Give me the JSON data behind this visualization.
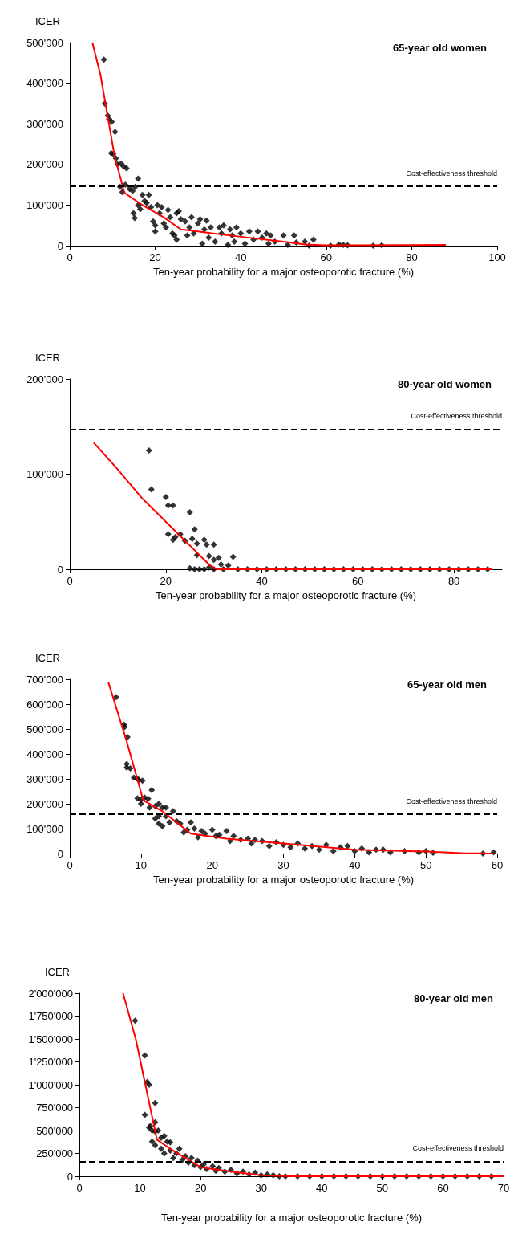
{
  "chart_data": [
    {
      "type": "scatter",
      "title": "65-year old women",
      "xlabel": "Ten-year probability for a major osteoporotic fracture (%)",
      "ylabel": "ICER",
      "marker": "diamond",
      "grid": false,
      "xlim": [
        0,
        100
      ],
      "xticks": [
        0,
        20,
        40,
        60,
        80,
        100
      ],
      "ylim": [
        0,
        500000
      ],
      "yticks": [
        {
          "value": 0,
          "label": "0"
        },
        {
          "value": 100000,
          "label": "100'000"
        },
        {
          "value": 200000,
          "label": "200'000"
        },
        {
          "value": 300000,
          "label": "300'000"
        },
        {
          "value": 400000,
          "label": "400'000"
        },
        {
          "value": 500000,
          "label": "500'000"
        }
      ],
      "ref_lines": [
        {
          "axis": "y",
          "value": 146000,
          "label": "Cost-effectiveness threshold",
          "color": "#000000",
          "line_style": "dashed"
        }
      ],
      "series": [
        {
          "color": "#000000",
          "x": [
            8,
            8.2,
            8.9,
            9.2,
            9.8,
            10.6,
            9.7,
            10.2,
            10.8,
            11.2,
            12,
            12.6,
            13.3,
            11.8,
            12.3,
            13,
            14,
            14.7,
            15.3,
            16,
            14.9,
            15.2,
            16,
            16.5,
            17,
            17.5,
            18,
            18.5,
            19,
            19.5,
            20,
            20,
            20.5,
            21,
            21.5,
            22,
            22.5,
            23,
            23.5,
            24,
            24.5,
            25,
            25,
            25.5,
            26,
            27,
            27.5,
            28,
            28.5,
            29,
            30,
            30.5,
            31,
            31.5,
            32,
            32.5,
            33,
            34,
            35,
            35.5,
            36,
            37,
            37.5,
            38,
            38.5,
            39,
            40,
            41,
            42,
            43,
            44,
            45,
            46,
            46.5,
            47,
            48,
            50,
            51,
            52.5,
            53,
            55,
            56,
            57,
            61,
            63,
            64,
            65,
            71,
            73
          ],
          "values": [
            458000,
            350000,
            320000,
            312000,
            305000,
            280000,
            228000,
            226000,
            215000,
            200000,
            202000,
            195000,
            190000,
            145000,
            132000,
            150000,
            140000,
            135000,
            145000,
            165000,
            80000,
            68000,
            100000,
            90000,
            125000,
            110000,
            105000,
            125000,
            95000,
            60000,
            50000,
            35000,
            100000,
            80000,
            95000,
            55000,
            45000,
            88000,
            70000,
            30000,
            25000,
            15000,
            80000,
            85000,
            65000,
            60000,
            25000,
            45000,
            70000,
            30000,
            55000,
            65000,
            5000,
            40000,
            62000,
            20000,
            45000,
            10000,
            45000,
            30000,
            50000,
            2000,
            40000,
            25000,
            10000,
            45000,
            30000,
            5000,
            35000,
            15000,
            35000,
            20000,
            30000,
            5000,
            25000,
            10000,
            25000,
            2000,
            25000,
            8000,
            10000,
            0,
            15000,
            0,
            3000,
            2000,
            1000,
            0,
            1000
          ]
        },
        {
          "type": "line",
          "color": "#ff0000",
          "marker": "none",
          "x": [
            5.3,
            7.2,
            10.5,
            12.8,
            17,
            22,
            26,
            30,
            40,
            50,
            55,
            60,
            88
          ],
          "values": [
            500000,
            420000,
            220000,
            130000,
            100000,
            70000,
            40000,
            35000,
            22000,
            10000,
            3000,
            1000,
            2000
          ]
        }
      ]
    },
    {
      "type": "scatter",
      "title": "80-year old women",
      "xlabel": "Ten-year probability for a major osteoporotic fracture (%)",
      "ylabel": "ICER",
      "marker": "diamond",
      "grid": false,
      "xlim": [
        0,
        90
      ],
      "xticks": [
        0,
        20,
        40,
        60,
        80
      ],
      "ylim": [
        0,
        200000
      ],
      "yticks": [
        {
          "value": 0,
          "label": "0"
        },
        {
          "value": 100000,
          "label": "100'000"
        },
        {
          "value": 200000,
          "label": "200'000"
        }
      ],
      "ref_lines": [
        {
          "axis": "y",
          "value": 147000,
          "label": "Cost-effectiveness threshold",
          "color": "#000000",
          "line_style": "dashed"
        }
      ],
      "series": [
        {
          "color": "#000000",
          "x": [
            16.5,
            17,
            20,
            20.5,
            21.5,
            20.5,
            21.5,
            22,
            23,
            24,
            25,
            25.5,
            26,
            26.5,
            26.5,
            28,
            28.5,
            29,
            30,
            30,
            31,
            31.5,
            33,
            34,
            25,
            26,
            27,
            28,
            29,
            30,
            32,
            35,
            37,
            39,
            41,
            43,
            45,
            47,
            49,
            51,
            53,
            55,
            57,
            59,
            61,
            63,
            65,
            67,
            69,
            71,
            73,
            75,
            77,
            79,
            81,
            83,
            85,
            87
          ],
          "values": [
            125000,
            84000,
            76000,
            67000,
            67000,
            37000,
            31000,
            34000,
            37000,
            30000,
            60000,
            32000,
            42000,
            27000,
            15000,
            31000,
            26000,
            14000,
            26000,
            10000,
            12000,
            5000,
            4000,
            13000,
            1000,
            0,
            0,
            0,
            2000,
            0,
            0,
            0,
            0,
            0,
            0,
            0,
            0,
            0,
            0,
            0,
            0,
            0,
            0,
            0,
            0,
            0,
            0,
            0,
            0,
            0,
            0,
            0,
            0,
            0,
            0,
            0,
            0,
            0
          ]
        },
        {
          "type": "line",
          "color": "#ff0000",
          "marker": "none",
          "x": [
            5,
            10,
            15,
            20,
            25,
            29,
            30.5,
            60,
            88
          ],
          "values": [
            133000,
            105000,
            75000,
            50000,
            25000,
            5000,
            0,
            0,
            0
          ]
        }
      ]
    },
    {
      "type": "scatter",
      "title": "65-year old men",
      "xlabel": "Ten-year probability for a major osteoporotic fracture (%)",
      "ylabel": "ICER",
      "marker": "diamond",
      "grid": false,
      "xlim": [
        0,
        60
      ],
      "xticks": [
        0,
        10,
        20,
        30,
        40,
        50,
        60
      ],
      "ylim": [
        0,
        700000
      ],
      "yticks": [
        {
          "value": 0,
          "label": "0"
        },
        {
          "value": 100000,
          "label": "100'000"
        },
        {
          "value": 200000,
          "label": "200'000"
        },
        {
          "value": 300000,
          "label": "300'000"
        },
        {
          "value": 400000,
          "label": "400'000"
        },
        {
          "value": 500000,
          "label": "500'000"
        },
        {
          "value": 600000,
          "label": "600'000"
        },
        {
          "value": 700000,
          "label": "700'000"
        }
      ],
      "ref_lines": [
        {
          "axis": "y",
          "value": 158000,
          "label": "Cost-effectiveness threshold",
          "color": "#000000",
          "line_style": "dashed"
        }
      ],
      "series": [
        {
          "color": "#000000",
          "x": [
            6.5,
            7.6,
            7.7,
            8.1,
            8,
            8,
            8.5,
            9,
            9.5,
            9.7,
            10.2,
            9.5,
            10,
            10,
            10.5,
            11,
            11.5,
            11.2,
            12,
            12.5,
            13,
            13.5,
            12,
            12.5,
            12.5,
            13,
            13.5,
            14,
            14.5,
            15,
            15.5,
            16,
            16.5,
            17,
            17.5,
            18,
            18.5,
            19,
            20,
            20.5,
            21,
            22,
            22.5,
            23,
            24,
            25,
            25.5,
            26,
            27,
            28,
            29,
            30,
            31,
            32,
            33,
            34,
            35,
            36,
            37,
            38,
            39,
            40,
            41,
            42,
            43,
            44,
            45,
            47,
            49,
            50,
            51,
            58,
            59.5
          ],
          "values": [
            628000,
            518000,
            508000,
            468000,
            360000,
            345000,
            342000,
            305000,
            300000,
            295000,
            293000,
            222000,
            215000,
            200000,
            225000,
            220000,
            255000,
            185000,
            190000,
            200000,
            185000,
            185000,
            140000,
            150000,
            120000,
            110000,
            150000,
            125000,
            170000,
            130000,
            120000,
            85000,
            95000,
            125000,
            100000,
            65000,
            90000,
            80000,
            95000,
            70000,
            75000,
            90000,
            50000,
            70000,
            55000,
            60000,
            40000,
            55000,
            50000,
            30000,
            45000,
            35000,
            25000,
            40000,
            20000,
            30000,
            15000,
            35000,
            10000,
            25000,
            30000,
            10000,
            20000,
            5000,
            15000,
            15000,
            5000,
            10000,
            5000,
            10000,
            3000,
            0,
            5000
          ]
        },
        {
          "type": "line",
          "color": "#ff0000",
          "marker": "none",
          "x": [
            5.4,
            8,
            10.3,
            13,
            17,
            22,
            30,
            40,
            50,
            55,
            59.5
          ],
          "values": [
            690000,
            450000,
            215000,
            170000,
            80000,
            60000,
            40000,
            15000,
            8000,
            2000,
            0
          ]
        }
      ]
    },
    {
      "type": "scatter",
      "title": "80-year old men",
      "xlabel": "Ten-year probability for a major osteoporotic fracture (%)",
      "ylabel": "ICER",
      "marker": "diamond",
      "grid": false,
      "xlim": [
        0,
        70
      ],
      "xticks": [
        0,
        10,
        20,
        30,
        40,
        50,
        60,
        70
      ],
      "ylim": [
        0,
        2000000
      ],
      "yticks": [
        {
          "value": 0,
          "label": "0"
        },
        {
          "value": 250000,
          "label": "250'000"
        },
        {
          "value": 500000,
          "label": "500'000"
        },
        {
          "value": 750000,
          "label": "750'000"
        },
        {
          "value": 1000000,
          "label": "1'000'000"
        },
        {
          "value": 1250000,
          "label": "1'250'000"
        },
        {
          "value": 1500000,
          "label": "1'500'000"
        },
        {
          "value": 1750000,
          "label": "1'750'000"
        },
        {
          "value": 2000000,
          "label": "2'000'000"
        }
      ],
      "ref_lines": [
        {
          "axis": "y",
          "value": 160000,
          "label": "Cost-effectiveness threshold",
          "color": "#000000",
          "line_style": "dashed"
        }
      ],
      "series": [
        {
          "color": "#000000",
          "x": [
            9.2,
            10.8,
            11.2,
            11.5,
            12.5,
            10.8,
            11.5,
            11.7,
            12.5,
            12,
            12.5,
            13,
            12,
            12.5,
            13.5,
            14,
            14.5,
            15,
            13.5,
            14,
            15,
            15.5,
            16,
            16.5,
            17,
            17.5,
            18,
            18.5,
            19,
            19.5,
            20,
            20.5,
            21,
            22,
            22.5,
            23,
            24,
            25,
            26,
            27,
            28,
            29,
            30,
            31,
            32,
            33,
            34,
            36,
            38,
            40,
            42,
            44,
            46,
            48,
            50,
            52,
            54,
            56,
            58,
            60,
            62,
            64,
            66,
            68
          ],
          "values": [
            1700000,
            1320000,
            1030000,
            1000000,
            800000,
            670000,
            530000,
            550000,
            590000,
            500000,
            490000,
            500000,
            380000,
            340000,
            420000,
            440000,
            380000,
            370000,
            300000,
            250000,
            280000,
            200000,
            250000,
            300000,
            180000,
            220000,
            150000,
            200000,
            120000,
            170000,
            100000,
            130000,
            80000,
            110000,
            60000,
            90000,
            50000,
            70000,
            30000,
            50000,
            20000,
            40000,
            10000,
            20000,
            10000,
            0,
            0,
            0,
            0,
            0,
            0,
            0,
            0,
            0,
            0,
            0,
            0,
            0,
            0,
            0,
            0,
            0,
            0,
            0
          ]
        },
        {
          "type": "line",
          "color": "#ff0000",
          "marker": "none",
          "x": [
            7.2,
            9.3,
            12.8,
            15,
            20,
            25,
            30,
            35,
            70
          ],
          "values": [
            2000000,
            1500000,
            400000,
            300000,
            100000,
            50000,
            10000,
            0,
            0
          ]
        }
      ]
    }
  ]
}
